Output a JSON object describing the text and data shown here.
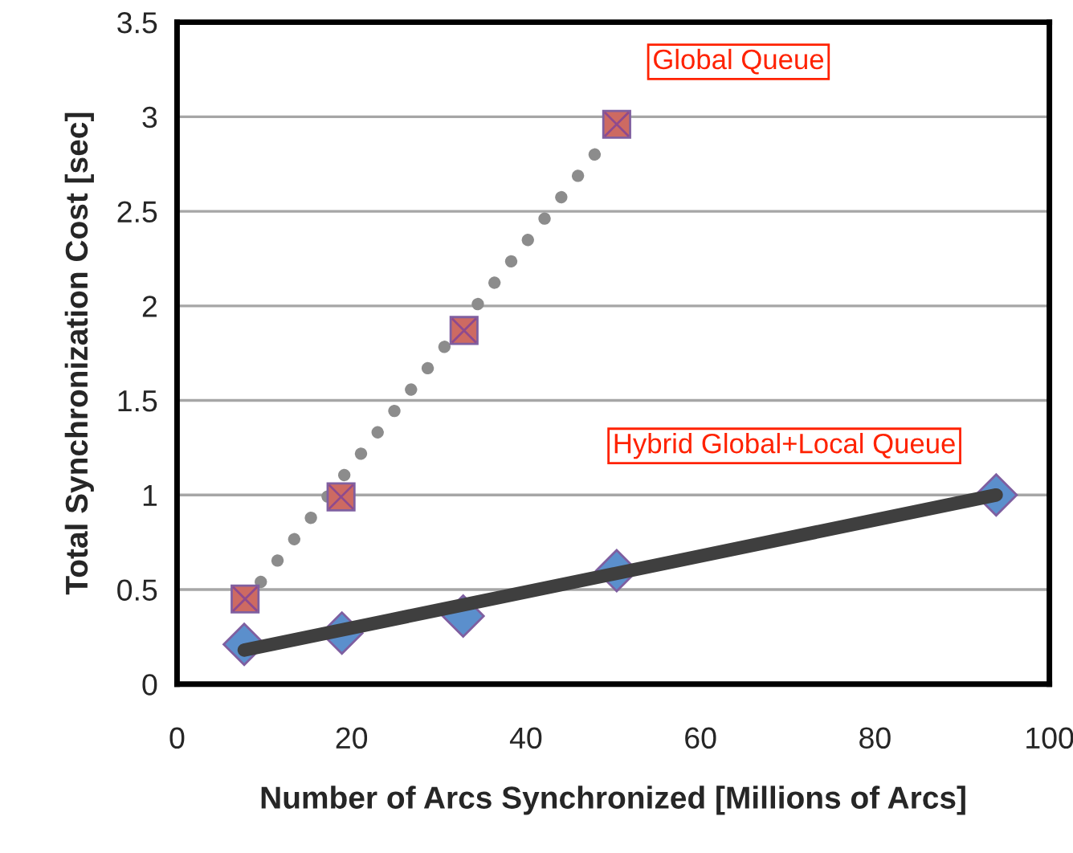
{
  "chart_data": {
    "type": "scatter",
    "xlabel": "Number of Arcs Synchronized [Millions of Arcs]",
    "ylabel": "Total Synchronization Cost [sec]",
    "xlim": [
      0,
      100
    ],
    "xticks": [
      0,
      20,
      40,
      60,
      80,
      100
    ],
    "ylim": [
      0,
      3.5
    ],
    "yticks": [
      0,
      0.5,
      1,
      1.5,
      2,
      2.5,
      3,
      3.5
    ],
    "grid": "y",
    "legend": false,
    "series": [
      {
        "type": "line",
        "line_style": "dotted",
        "marker": "none",
        "color": "#8c8c8c",
        "x": [
          9.6,
          48.2
        ],
        "values": [
          0.54,
          2.82
        ]
      },
      {
        "type": "line",
        "line_style": "solid",
        "marker": "none",
        "color": "#3f3f3f",
        "x": [
          7.7,
          93.9
        ],
        "values": [
          0.18,
          1.0
        ]
      },
      {
        "name": "Global Queue",
        "marker": "square",
        "color": "#cd6a62",
        "x": [
          7.8,
          18.8,
          32.9,
          50.4
        ],
        "values": [
          0.45,
          0.99,
          1.87,
          2.96
        ]
      },
      {
        "name": "Hybrid Global+Local Queue",
        "marker": "diamond",
        "color": "#5b8fcc",
        "x": [
          7.7,
          18.9,
          32.8,
          50.4,
          93.9
        ],
        "values": [
          0.21,
          0.27,
          0.36,
          0.6,
          1.0
        ]
      }
    ]
  }
}
